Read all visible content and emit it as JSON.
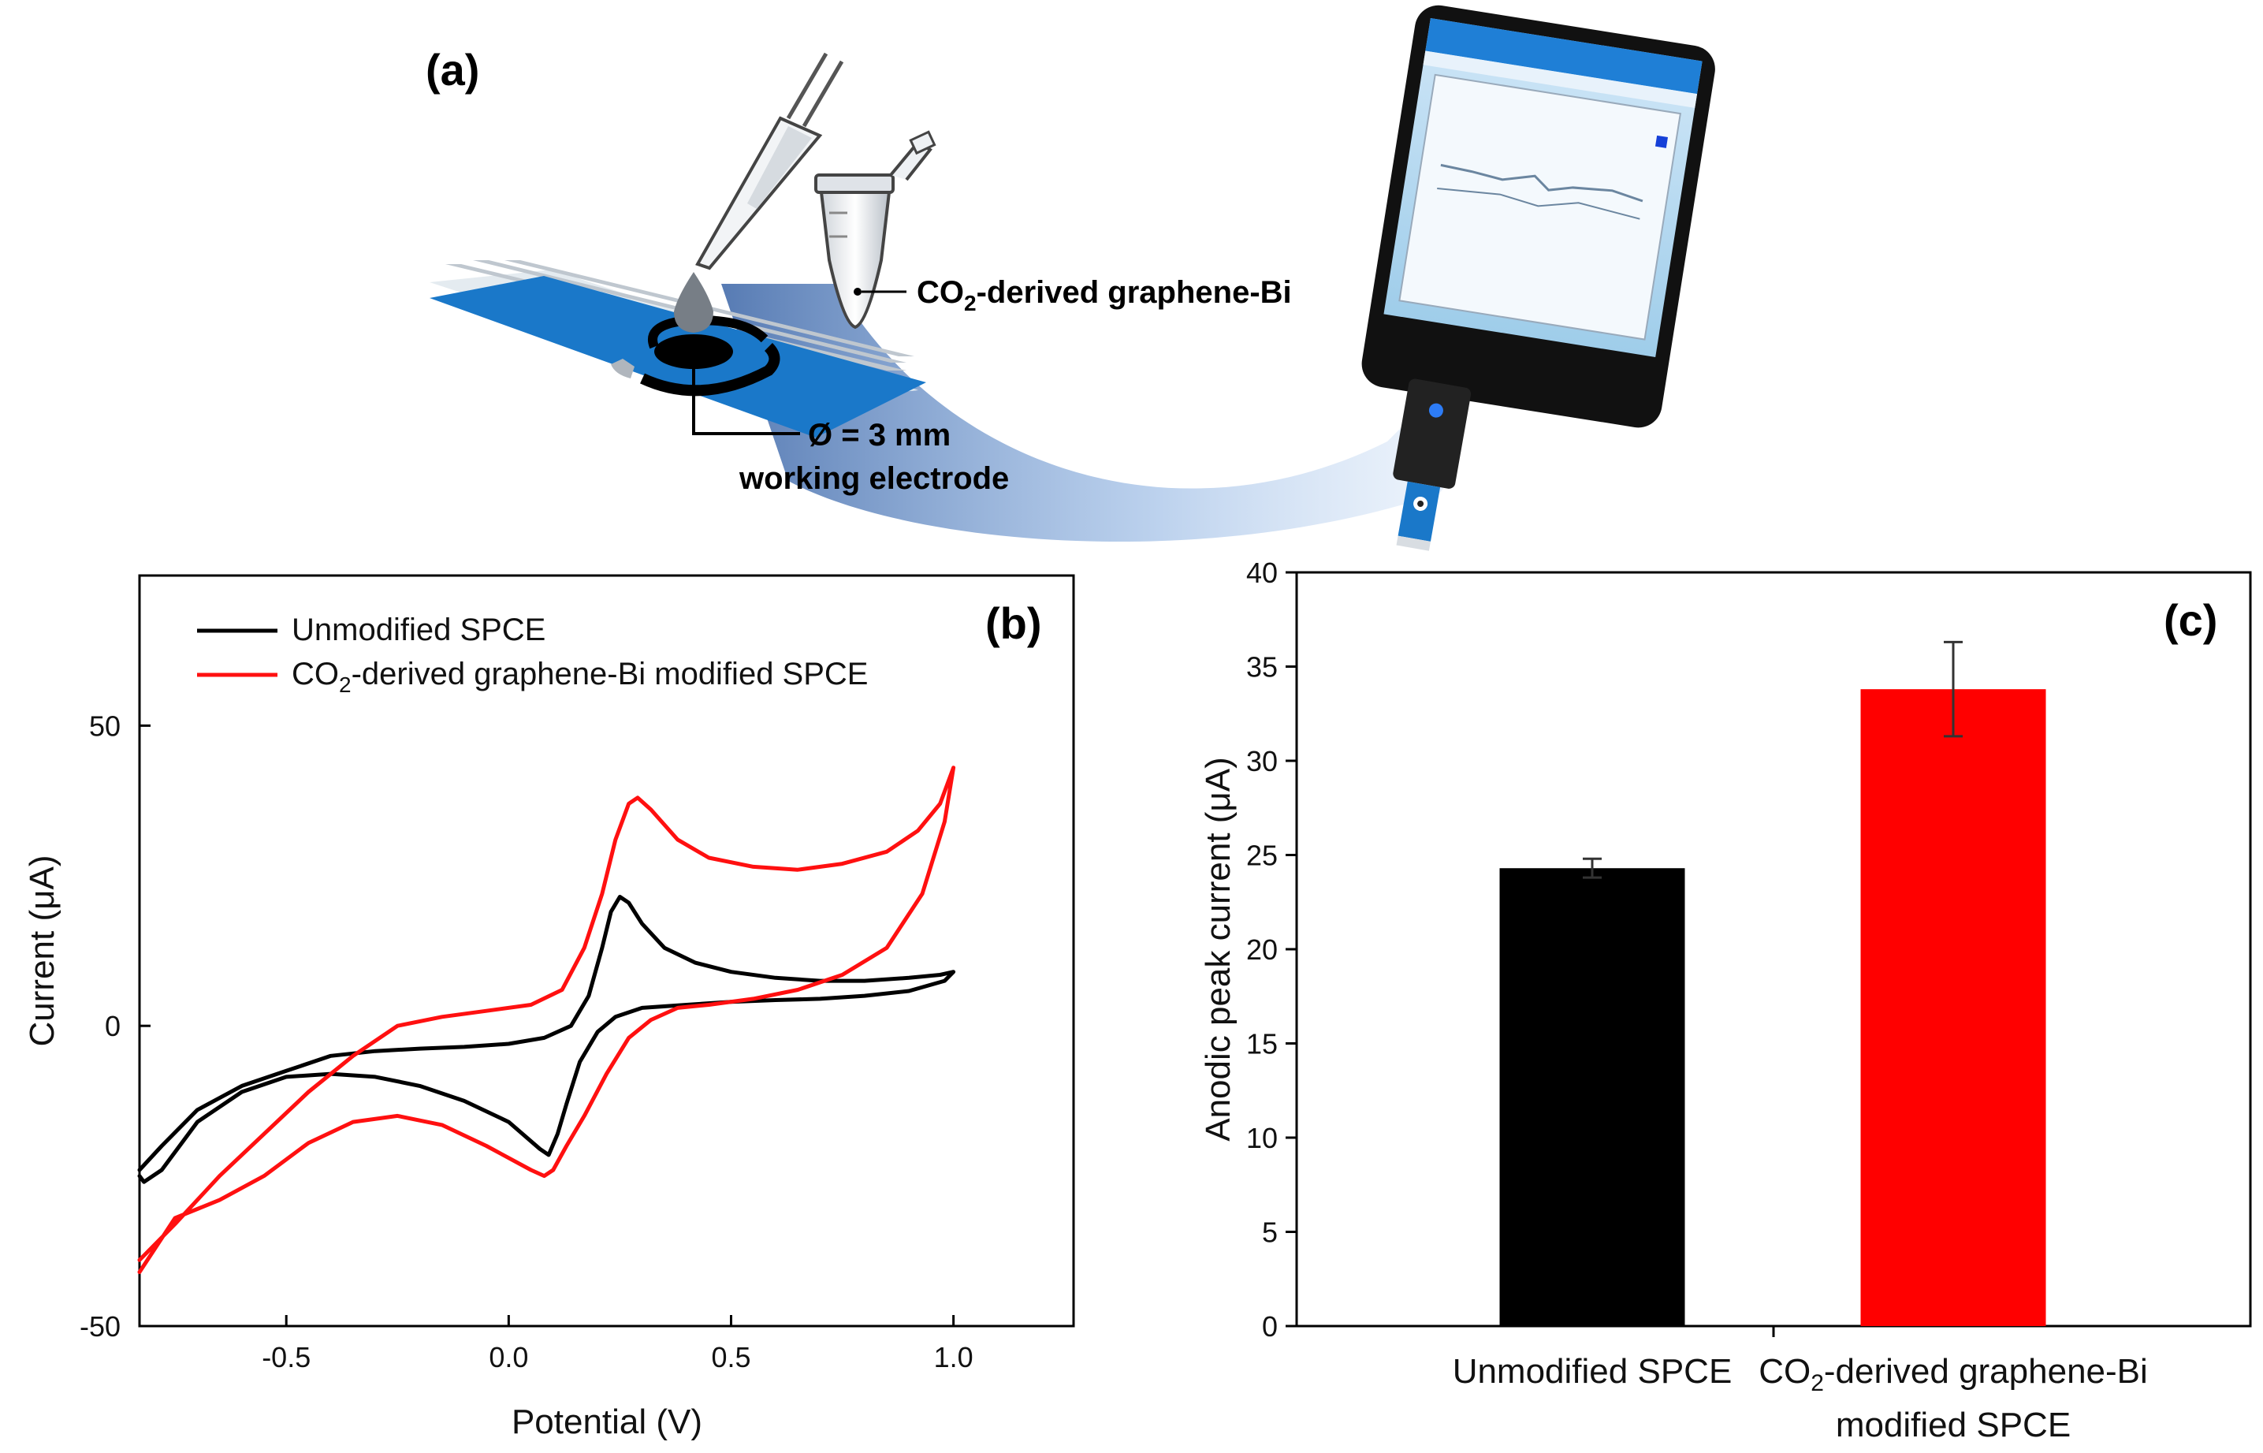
{
  "colors": {
    "black": "#000000",
    "red": "#ff1010",
    "strip_blue": "#1a78c9",
    "ink": "#222222"
  },
  "panel_a": {
    "label": "(a)",
    "material_label": "CO",
    "material_sub": "2",
    "material_rest": "-derived graphene-Bi",
    "diameter_label": "Ø = 3 mm",
    "electrode_label": "working electrode",
    "icons": [
      "pipette-icon",
      "tube-icon",
      "electrode-strip-icon",
      "smartphone-icon",
      "potentiostat-dongle-icon"
    ]
  },
  "chart_data": [
    {
      "type": "line",
      "panel_label": "(b)",
      "xlabel": "Potential (V)",
      "ylabel": "Current (μA)",
      "xlim": [
        -0.83,
        1.27
      ],
      "ylim": [
        -50,
        75
      ],
      "x_ticks": [
        -0.5,
        0.0,
        0.5,
        1.0
      ],
      "x_tick_labels": [
        "-0.5",
        "0.0",
        "0.5",
        "1.0"
      ],
      "y_ticks": [
        -50,
        0,
        50
      ],
      "y_tick_labels": [
        "-50",
        "0",
        "50"
      ],
      "legend": {
        "placement": "top-left",
        "entries": [
          {
            "label": "Unmodified SPCE",
            "label_sub": "",
            "label_rest": "",
            "color": "#000000"
          },
          {
            "label": "CO",
            "label_sub": "2",
            "label_rest": "-derived graphene-Bi modified SPCE",
            "color": "#ff1010"
          }
        ]
      },
      "series": [
        {
          "name": "Unmodified SPCE",
          "color": "#000000",
          "points": [
            [
              -0.83,
              -24
            ],
            [
              -0.78,
              -20
            ],
            [
              -0.7,
              -14
            ],
            [
              -0.6,
              -10
            ],
            [
              -0.5,
              -7.5
            ],
            [
              -0.4,
              -5
            ],
            [
              -0.3,
              -4.2
            ],
            [
              -0.2,
              -3.8
            ],
            [
              -0.1,
              -3.5
            ],
            [
              0.0,
              -3
            ],
            [
              0.08,
              -2
            ],
            [
              0.14,
              0
            ],
            [
              0.18,
              5
            ],
            [
              0.21,
              13
            ],
            [
              0.23,
              19
            ],
            [
              0.25,
              21.5
            ],
            [
              0.27,
              20.5
            ],
            [
              0.3,
              17
            ],
            [
              0.35,
              13
            ],
            [
              0.42,
              10.5
            ],
            [
              0.5,
              9
            ],
            [
              0.6,
              8
            ],
            [
              0.7,
              7.5
            ],
            [
              0.8,
              7.5
            ],
            [
              0.9,
              8
            ],
            [
              0.97,
              8.5
            ],
            [
              1.0,
              9
            ],
            [
              0.98,
              7.5
            ],
            [
              0.9,
              5.8
            ],
            [
              0.8,
              5
            ],
            [
              0.7,
              4.5
            ],
            [
              0.6,
              4.3
            ],
            [
              0.5,
              4
            ],
            [
              0.4,
              3.5
            ],
            [
              0.3,
              3
            ],
            [
              0.24,
              1.5
            ],
            [
              0.2,
              -1
            ],
            [
              0.16,
              -6
            ],
            [
              0.13,
              -13
            ],
            [
              0.11,
              -18
            ],
            [
              0.09,
              -21.5
            ],
            [
              0.07,
              -20.5
            ],
            [
              0.0,
              -16
            ],
            [
              -0.1,
              -12.5
            ],
            [
              -0.2,
              -10
            ],
            [
              -0.3,
              -8.5
            ],
            [
              -0.4,
              -8
            ],
            [
              -0.5,
              -8.5
            ],
            [
              -0.6,
              -11
            ],
            [
              -0.7,
              -16
            ],
            [
              -0.78,
              -24
            ],
            [
              -0.82,
              -26
            ],
            [
              -0.83,
              -25
            ]
          ]
        },
        {
          "name": "CO2-derived graphene-Bi modified SPCE",
          "color": "#ff1010",
          "points": [
            [
              -0.83,
              -39
            ],
            [
              -0.75,
              -33
            ],
            [
              -0.65,
              -25
            ],
            [
              -0.55,
              -18
            ],
            [
              -0.45,
              -11
            ],
            [
              -0.35,
              -5
            ],
            [
              -0.25,
              0
            ],
            [
              -0.15,
              1.5
            ],
            [
              -0.05,
              2.5
            ],
            [
              0.05,
              3.5
            ],
            [
              0.12,
              6
            ],
            [
              0.17,
              13
            ],
            [
              0.21,
              22
            ],
            [
              0.24,
              31
            ],
            [
              0.27,
              37
            ],
            [
              0.29,
              38
            ],
            [
              0.32,
              36
            ],
            [
              0.38,
              31
            ],
            [
              0.45,
              28
            ],
            [
              0.55,
              26.5
            ],
            [
              0.65,
              26
            ],
            [
              0.75,
              27
            ],
            [
              0.85,
              29
            ],
            [
              0.92,
              32.5
            ],
            [
              0.97,
              37
            ],
            [
              1.0,
              43
            ],
            [
              0.98,
              34
            ],
            [
              0.93,
              22
            ],
            [
              0.85,
              13
            ],
            [
              0.75,
              8.5
            ],
            [
              0.65,
              6
            ],
            [
              0.55,
              4.5
            ],
            [
              0.45,
              3.5
            ],
            [
              0.38,
              3
            ],
            [
              0.32,
              1
            ],
            [
              0.27,
              -2
            ],
            [
              0.22,
              -8
            ],
            [
              0.17,
              -15
            ],
            [
              0.13,
              -20
            ],
            [
              0.1,
              -24
            ],
            [
              0.08,
              -25
            ],
            [
              0.05,
              -24
            ],
            [
              -0.05,
              -20
            ],
            [
              -0.15,
              -16.5
            ],
            [
              -0.25,
              -15
            ],
            [
              -0.35,
              -16
            ],
            [
              -0.45,
              -19.5
            ],
            [
              -0.55,
              -25
            ],
            [
              -0.65,
              -29
            ],
            [
              -0.75,
              -32
            ],
            [
              -0.83,
              -41
            ]
          ]
        }
      ]
    },
    {
      "type": "bar",
      "panel_label": "(c)",
      "ylabel": "Anodic peak current (μA)",
      "ylim": [
        0,
        40
      ],
      "y_ticks": [
        0,
        5,
        10,
        15,
        20,
        25,
        30,
        35,
        40
      ],
      "y_tick_labels": [
        "0",
        "5",
        "10",
        "15",
        "20",
        "25",
        "30",
        "35",
        "40"
      ],
      "categories": [
        {
          "line1": "Unmodified SPCE",
          "line1_sub": "",
          "line1_rest": "",
          "line2": ""
        },
        {
          "line1": "CO",
          "line1_sub": "2",
          "line1_rest": "-derived graphene-Bi",
          "line2": "modified SPCE"
        }
      ],
      "values": [
        24.3,
        33.8
      ],
      "errors": [
        0.5,
        2.5
      ],
      "bar_colors": [
        "#000000",
        "#ff0000"
      ]
    }
  ]
}
